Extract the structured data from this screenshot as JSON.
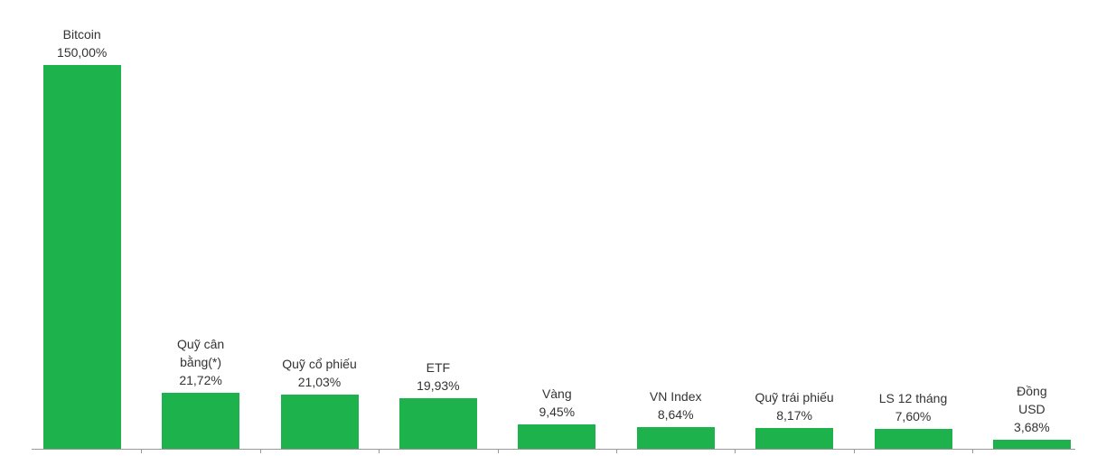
{
  "chart_data": {
    "type": "bar",
    "categories": [
      "Bitcoin",
      "Quỹ cân bằng(*)",
      "Quỹ cổ phiếu",
      "ETF",
      "Vàng",
      "VN Index",
      "Quỹ trái phiếu",
      "LS 12 tháng",
      "Đồng USD"
    ],
    "values": [
      150.0,
      21.72,
      21.03,
      19.93,
      9.45,
      8.64,
      8.17,
      7.6,
      3.68
    ],
    "value_labels": [
      "150,00%",
      "21,72%",
      "21,03%",
      "19,93%",
      "9,45%",
      "8,64%",
      "8,17%",
      "7,60%",
      "3,68%"
    ],
    "color": "#1db24b",
    "ylim": [
      0,
      150
    ]
  }
}
